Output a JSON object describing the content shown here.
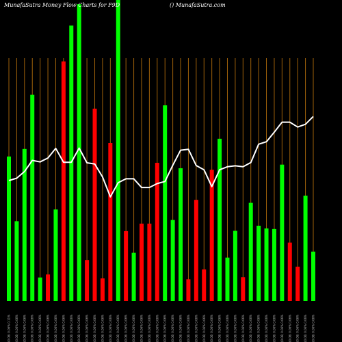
{
  "header": {
    "title_left": "MunafaSutra  Money Flow  Charts for F9D",
    "title_right": "() MunafaSutra.com"
  },
  "colors": {
    "background": "#000000",
    "up": "#00ff00",
    "down": "#ff0000",
    "line": "#ffffff",
    "grid": "#a0620a"
  },
  "chart_data": {
    "type": "bar",
    "title": "MunafaSutra  Money Flow  Charts for F9D",
    "grid": true,
    "ylim": [
      0,
      100
    ],
    "x": [
      "(0.06) 0.06% 0.11%",
      "(0.06) 0.06% 0.06%",
      "(0.06) 0.06% 0.06%",
      "(0.06) 0.06% 0.06%",
      "(0.06) 0.06% 0.06%",
      "(0.06) 0.06% 0.06%",
      "(0.06) 0.06% 0.06%",
      "(0.06) 0.06% 0.06%",
      "(0.06) 0.06% 0.06%",
      "(0.06) 0.06% 0.06%",
      "(0.06) 0.06% 0.06%",
      "(0.06) 0.06% 0.06%",
      "(0.06) 0.06% 0.06%",
      "(0.06) 0.06% 0.06%",
      "(0.06) 0.06% 0.06%",
      "(0.06) 0.06% 0.06%",
      "(0.06) 0.06% 0.06%",
      "(0.06) 0.06% 0.06%",
      "(0.06) 0.06% 0.06%",
      "(0.06) 0.06% 0.06%",
      "(0.06) 0.06% 0.06%",
      "(0.06) 0.06% 0.06%",
      "(0.06) 0.06% 0.06%",
      "(0.06) 0.06% 0.06%",
      "(0.06) 0.06% 0.06%",
      "(0.06) 0.06% 0.06%",
      "(0.06) 0.06% 0.06%",
      "(0.06) 0.06% 0.06%",
      "(0.06) 0.06% 0.06%",
      "(0.06) 0.06% 0.06%",
      "(0.06) 0.06% 0.06%",
      "(0.06) 0.06% 0.06%",
      "(0.06) 0.06% 0.06%",
      "(0.06) 0.06% 0.06%",
      "(0.06) 0.06% 0.06%",
      "(0.06) 0.06% 0.06%",
      "(0.06) 0.06% 0.06%",
      "(0.06) 0.06% 0.06%",
      "(0.06) 0.06% 0.06%",
      "(0.06) 0.06% 0.06%"
    ],
    "series": [
      {
        "kind": "bar",
        "values": [
          48.0,
          26.5,
          50.5,
          68.5,
          7.8,
          8.8,
          30.4,
          79.6,
          91.5,
          98.6,
          13.6,
          63.9,
          7.5,
          52.5,
          100.0,
          23.2,
          16.0,
          25.7,
          25.7,
          45.9,
          65.0,
          26.9,
          44.1,
          7.2,
          33.6,
          10.5,
          43.6,
          53.9,
          14.4,
          23.3,
          7.9,
          32.6,
          25.0,
          24.1,
          23.9,
          45.3,
          19.4,
          11.4,
          35.0,
          16.4
        ],
        "colors": [
          "green",
          "green",
          "green",
          "green",
          "green",
          "red",
          "green",
          "red",
          "green",
          "green",
          "red",
          "red",
          "red",
          "red",
          "green",
          "red",
          "green",
          "red",
          "red",
          "red",
          "green",
          "green",
          "green",
          "red",
          "red",
          "red",
          "red",
          "green",
          "green",
          "green",
          "red",
          "green",
          "green",
          "green",
          "green",
          "green",
          "red",
          "red",
          "green",
          "green"
        ]
      },
      {
        "kind": "line",
        "values": [
          40.0,
          40.8,
          43.0,
          46.7,
          46.2,
          47.5,
          50.7,
          46.1,
          46.1,
          50.8,
          45.9,
          45.5,
          41.2,
          34.6,
          39.3,
          40.6,
          40.6,
          37.7,
          37.7,
          39.0,
          39.7,
          45.1,
          50.1,
          50.4,
          45.0,
          43.6,
          38.0,
          43.6,
          44.6,
          44.9,
          44.6,
          46.0,
          52.1,
          52.9,
          56.1,
          59.4,
          59.4,
          57.8,
          58.7,
          61.3
        ]
      }
    ]
  }
}
